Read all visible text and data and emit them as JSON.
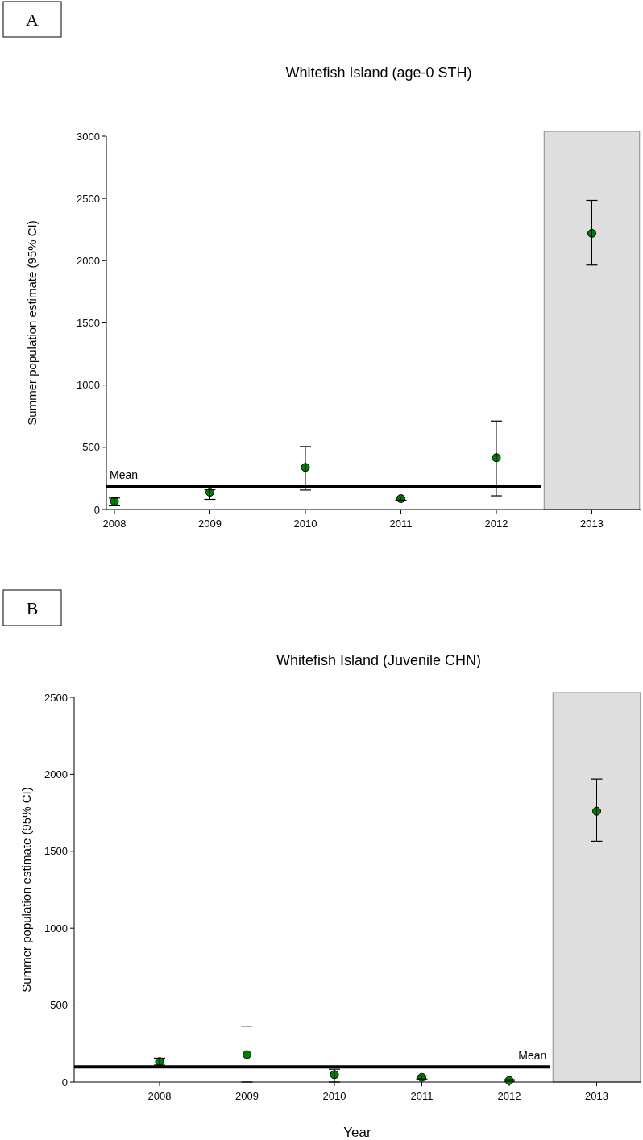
{
  "chart_data": [
    {
      "type": "scatter",
      "title": "Whitefish Island (age-0 STH)",
      "ylabel": "Summer population estimate (95% CI)",
      "annotations": [
        "A"
      ],
      "categories": [
        "2008",
        "2009",
        "2010",
        "2011",
        "2012",
        "2013"
      ],
      "series": [
        {
          "color": "#008000",
          "values": [
            66,
            139,
            338,
            87,
            416,
            2220
          ],
          "errors": [
            [
              35,
              92
            ],
            [
              81,
              160
            ],
            [
              156,
              506
            ],
            [
              75,
              100
            ],
            [
              110,
              711
            ],
            [
              1965,
              2485
            ]
          ]
        }
      ],
      "ylim": [
        0,
        3000
      ],
      "yticks": [
        0,
        500,
        1000,
        1500,
        2000,
        2500,
        3000
      ],
      "grid": false,
      "marker": "circle",
      "ref_lines": [
        {
          "axis": "y",
          "value": 188,
          "label": "Mean",
          "color": "#000000"
        }
      ],
      "bands": [
        {
          "axis": "x",
          "from": "2013",
          "to": "2013",
          "color": "#dedede"
        }
      ]
    },
    {
      "type": "scatter",
      "title": "Whitefish Island (Juvenile CHN)",
      "xlabel": "Year",
      "ylabel": "Summer population estimate (95% CI)",
      "annotations": [
        "B"
      ],
      "categories": [
        "2008",
        "2009",
        "2010",
        "2011",
        "2012",
        "2013"
      ],
      "series": [
        {
          "color": "#008000",
          "values": [
            132,
            178,
            48,
            30,
            10,
            1760
          ],
          "errors": [
            [
              110,
              155
            ],
            [
              0,
              363
            ],
            [
              0,
              83
            ],
            [
              20,
              40
            ],
            [
              5,
              15
            ],
            [
              1565,
              1970
            ]
          ]
        }
      ],
      "ylim": [
        0,
        2500
      ],
      "yticks": [
        0,
        500,
        1000,
        1500,
        2000,
        2500
      ],
      "grid": false,
      "marker": "circle",
      "ref_lines": [
        {
          "axis": "y",
          "value": 98,
          "label": "Mean",
          "color": "#000000"
        }
      ],
      "bands": [
        {
          "axis": "x",
          "from": "2013",
          "to": "2013",
          "color": "#dedede"
        }
      ]
    }
  ]
}
